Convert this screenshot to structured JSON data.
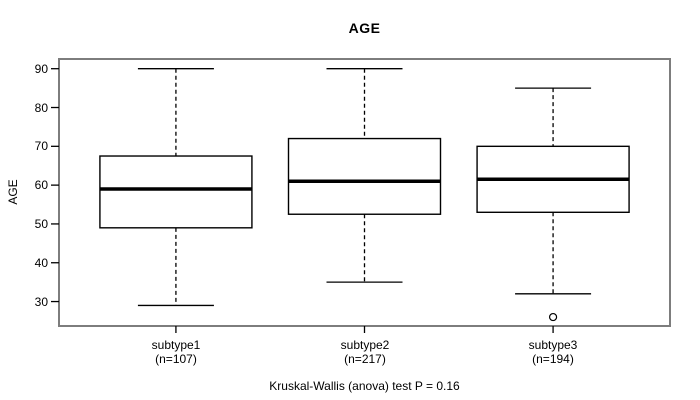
{
  "chart_data": {
    "type": "boxplot",
    "title": "AGE",
    "ylabel": "AGE",
    "xlabel": "",
    "caption": "Kruskal-Wallis (anova) test P = 0.16",
    "yticks": [
      30,
      40,
      50,
      60,
      70,
      80,
      90
    ],
    "ylim": [
      23.7,
      92.5
    ],
    "grid": false,
    "legend": false,
    "groups": [
      {
        "label": "subtype1",
        "sublabel": "(n=107)",
        "n": 107,
        "whisker_low": 29,
        "q1": 49,
        "median": 59,
        "q3": 67.5,
        "whisker_high": 90,
        "outliers": []
      },
      {
        "label": "subtype2",
        "sublabel": "(n=217)",
        "n": 217,
        "whisker_low": 35,
        "q1": 52.5,
        "median": 61,
        "q3": 72,
        "whisker_high": 90,
        "outliers": []
      },
      {
        "label": "subtype3",
        "sublabel": "(n=194)",
        "n": 194,
        "whisker_low": 32,
        "q1": 53,
        "median": 61.5,
        "q3": 70,
        "whisker_high": 85,
        "outliers": [
          26
        ]
      }
    ],
    "colors": {
      "background": "#ffffff",
      "plot_border": "#7d7d7d",
      "box_border": "#000000",
      "box_fill": "#ffffff",
      "median": "#000000",
      "whisker": "#000000",
      "text": "#000000"
    }
  }
}
